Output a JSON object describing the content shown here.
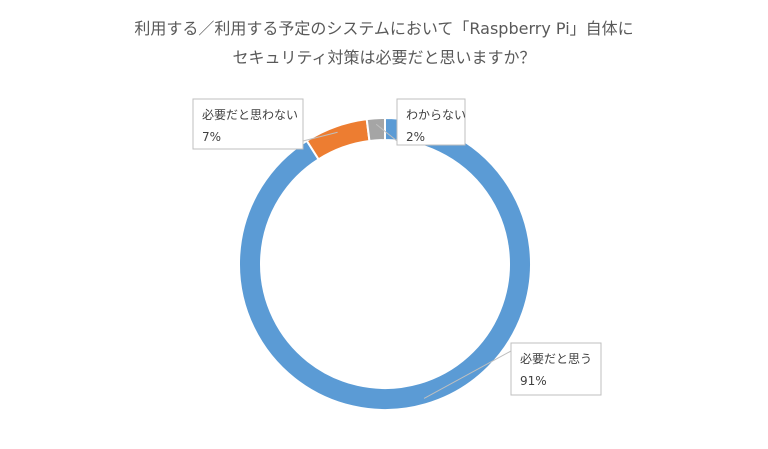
{
  "chart_data": {
    "type": "pie",
    "donut": true,
    "title_lines": [
      "利用する／利用する予定のシステムにおいて「Raspberry Pi」自体に",
      "セキュリティ対策は必要だと思いますか？"
    ],
    "slices": [
      {
        "label": "必要だと思う",
        "value": 91,
        "display": "91%",
        "color": "#5b9bd5"
      },
      {
        "label": "必要だと思わない",
        "value": 7,
        "display": "7%",
        "color": "#ed7d31"
      },
      {
        "label": "わからない",
        "value": 2,
        "display": "2%",
        "color": "#a5a5a5"
      }
    ],
    "legend": "none",
    "data_labels": "callouts"
  }
}
